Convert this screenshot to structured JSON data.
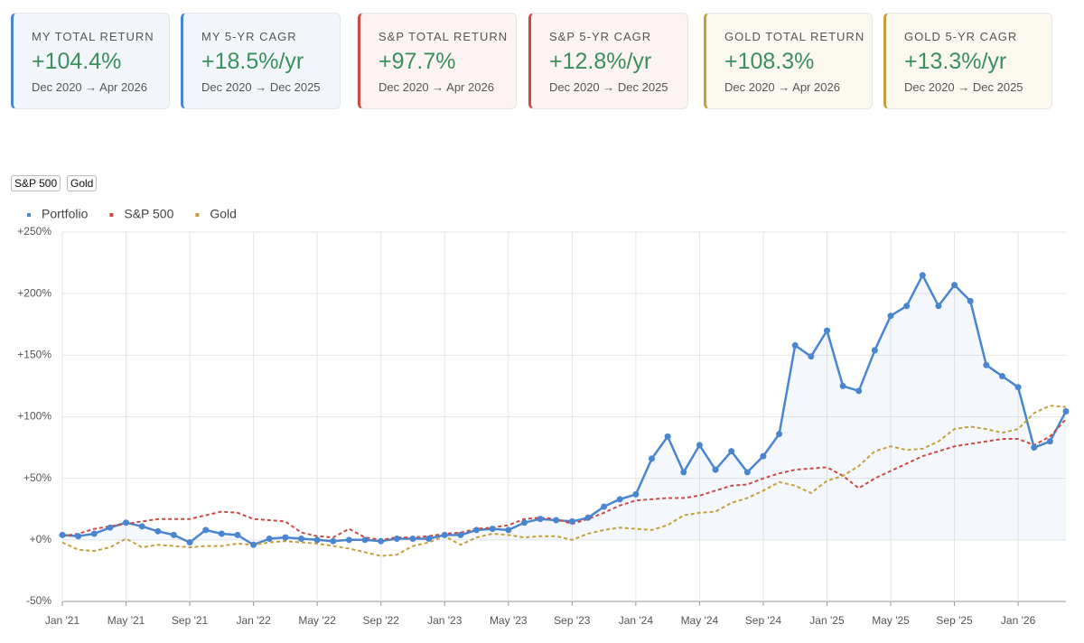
{
  "cards": [
    {
      "label": "MY TOTAL RETURN",
      "value": "+104.4%",
      "period": "Dec 2020 → Apr 2026",
      "color": "#4a86d0",
      "bg": "#f2f6fb"
    },
    {
      "label": "MY 5-YR CAGR",
      "value": "+18.5%/yr",
      "period": "Dec 2020 → Dec 2025",
      "color": "#4a86d0",
      "bg": "#f2f6fb"
    },
    {
      "label": "S&P TOTAL RETURN",
      "value": "+97.7%",
      "period": "Dec 2020 → Apr 2026",
      "color": "#cc4a44",
      "bg": "#fcf3f2"
    },
    {
      "label": "S&P 5-YR CAGR",
      "value": "+12.8%/yr",
      "period": "Dec 2020 → Dec 2025",
      "color": "#cc4a44",
      "bg": "#fcf3f2"
    },
    {
      "label": "GOLD TOTAL RETURN",
      "value": "+108.3%",
      "period": "Dec 2020 → Apr 2026",
      "color": "#c4a03c",
      "bg": "#fbf8ef"
    },
    {
      "label": "GOLD 5-YR CAGR",
      "value": "+13.3%/yr",
      "period": "Dec 2020 → Dec 2025",
      "color": "#c4a03c",
      "bg": "#fbf8ef"
    }
  ],
  "toggles": [
    "S&P 500",
    "Gold"
  ],
  "chart_data": {
    "type": "line",
    "categories": [
      "Jan '21",
      null,
      null,
      null,
      "May '21",
      null,
      null,
      null,
      "Sep '21",
      null,
      null,
      null,
      "Jan '22",
      null,
      null,
      null,
      "May '22",
      null,
      null,
      null,
      "Sep '22",
      null,
      null,
      null,
      "Jan '23",
      null,
      null,
      null,
      "May '23",
      null,
      null,
      null,
      "Sep '23",
      null,
      null,
      null,
      "Jan '24",
      null,
      null,
      null,
      "May '24",
      null,
      null,
      null,
      "Sep '24",
      null,
      null,
      null,
      "Jan '25",
      null,
      null,
      null,
      "May '25",
      null,
      null,
      null,
      "Sep '25",
      null,
      null,
      null,
      "Jan '26",
      null,
      null,
      null
    ],
    "series": [
      {
        "name": "Portfolio",
        "color": "#4a86d0",
        "dashed": false,
        "markers": true,
        "fill": true,
        "values": [
          4,
          3,
          5,
          10,
          14,
          11,
          7,
          4,
          -2,
          8,
          5,
          4,
          -4,
          1,
          2,
          1,
          0,
          -1,
          0,
          0,
          -1,
          1,
          1,
          1,
          4,
          4,
          8,
          9,
          8,
          14,
          17,
          16,
          15,
          18,
          27,
          33,
          37,
          66,
          84,
          55,
          77,
          57,
          72,
          55,
          68,
          86,
          158,
          149,
          170,
          125,
          121,
          154,
          182,
          190,
          215,
          190,
          207,
          194,
          142,
          133,
          124,
          75,
          80,
          104.4
        ]
      },
      {
        "name": "S&P 500",
        "color": "#cc4a44",
        "dashed": true,
        "markers": false,
        "fill": false,
        "values": [
          3,
          5,
          9,
          11,
          13,
          15,
          17,
          17,
          17,
          20,
          23,
          22,
          17,
          16,
          15,
          6,
          3,
          2,
          9,
          2,
          0,
          2,
          2,
          3,
          5,
          6,
          9,
          10,
          12,
          17,
          18,
          17,
          13,
          17,
          22,
          28,
          32,
          33,
          34,
          34,
          36,
          40,
          44,
          45,
          50,
          54,
          57,
          58,
          59,
          52,
          42,
          50,
          56,
          62,
          68,
          72,
          76,
          78,
          80,
          82,
          82,
          77,
          84,
          98
        ]
      },
      {
        "name": "Gold",
        "color": "#c4a03c",
        "dashed": true,
        "markers": false,
        "fill": false,
        "values": [
          -2,
          -8,
          -9,
          -6,
          1,
          -6,
          -4,
          -5,
          -6,
          -5,
          -5,
          -3,
          -4,
          -2,
          -1,
          -2,
          -3,
          -5,
          -7,
          -10,
          -13,
          -12,
          -5,
          -2,
          3,
          -4,
          2,
          5,
          4,
          2,
          3,
          3,
          0,
          5,
          8,
          10,
          9,
          8,
          12,
          20,
          22,
          23,
          30,
          34,
          40,
          47,
          44,
          38,
          48,
          52,
          60,
          72,
          76,
          73,
          74,
          80,
          90,
          92,
          90,
          87,
          90,
          103,
          109,
          108
        ]
      }
    ],
    "ylim": [
      -50,
      250
    ],
    "yticks": [
      {
        "value": -50,
        "label": "-50%"
      },
      {
        "value": 0,
        "label": "+0%"
      },
      {
        "value": 50,
        "label": "+50%"
      },
      {
        "value": 100,
        "label": "+100%"
      },
      {
        "value": 150,
        "label": "+150%"
      },
      {
        "value": 200,
        "label": "+200%"
      },
      {
        "value": 250,
        "label": "+250%"
      }
    ],
    "grid": true
  }
}
